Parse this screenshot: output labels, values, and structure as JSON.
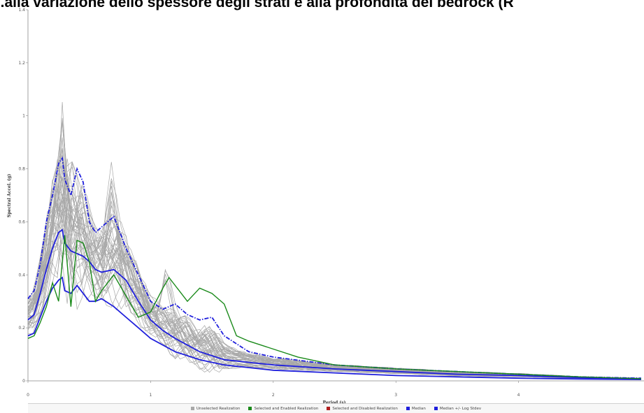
{
  "title": "...alla variazione dello spessore degli strati e alla profondità del bedrock (R",
  "chart_data": {
    "type": "line",
    "xlabel": "Period (s)",
    "ylabel": "Spectral Accel. (g)",
    "xlim": [
      0,
      5
    ],
    "ylim": [
      0,
      1.4
    ],
    "x_ticks": [
      "0",
      "1",
      "2",
      "3",
      "4"
    ],
    "y_ticks": [
      "0",
      "0.2",
      "0.4",
      "0.6",
      "0.8",
      "1",
      "1.2",
      "1.4"
    ],
    "grid": false,
    "legend_position": "bottom",
    "series": [
      {
        "name": "Median",
        "color": "#1f1fdc",
        "style": "solid",
        "x": [
          0,
          0.05,
          0.1,
          0.15,
          0.2,
          0.25,
          0.28,
          0.3,
          0.35,
          0.4,
          0.45,
          0.5,
          0.55,
          0.6,
          0.7,
          0.8,
          0.9,
          1.0,
          1.1,
          1.2,
          1.4,
          1.6,
          1.8,
          2.0,
          2.5,
          3.0,
          3.5,
          4.0,
          4.5,
          5.0
        ],
        "y": [
          0.23,
          0.25,
          0.33,
          0.42,
          0.5,
          0.56,
          0.57,
          0.52,
          0.49,
          0.48,
          0.47,
          0.45,
          0.42,
          0.41,
          0.42,
          0.38,
          0.3,
          0.23,
          0.19,
          0.16,
          0.11,
          0.08,
          0.07,
          0.06,
          0.045,
          0.035,
          0.025,
          0.02,
          0.012,
          0.008
        ]
      },
      {
        "name": "Median +/- Log Stdev (upper)",
        "color": "#1f1fdc",
        "style": "dashed",
        "x": [
          0,
          0.05,
          0.1,
          0.15,
          0.2,
          0.25,
          0.28,
          0.3,
          0.35,
          0.4,
          0.45,
          0.5,
          0.55,
          0.6,
          0.7,
          0.8,
          0.9,
          1.0,
          1.1,
          1.2,
          1.3,
          1.4,
          1.5,
          1.6,
          1.8,
          2.0,
          2.5,
          3.0,
          3.5,
          4.0,
          4.5,
          5.0
        ],
        "y": [
          0.31,
          0.34,
          0.44,
          0.6,
          0.7,
          0.82,
          0.84,
          0.76,
          0.7,
          0.8,
          0.75,
          0.6,
          0.56,
          0.58,
          0.62,
          0.5,
          0.4,
          0.3,
          0.27,
          0.29,
          0.25,
          0.23,
          0.24,
          0.17,
          0.11,
          0.09,
          0.06,
          0.045,
          0.035,
          0.025,
          0.015,
          0.01
        ]
      },
      {
        "name": "Median +/- Log Stdev (lower)",
        "color": "#1f1fdc",
        "style": "solid",
        "x": [
          0,
          0.05,
          0.1,
          0.15,
          0.2,
          0.25,
          0.28,
          0.3,
          0.35,
          0.4,
          0.45,
          0.5,
          0.55,
          0.6,
          0.7,
          0.8,
          0.9,
          1.0,
          1.2,
          1.4,
          1.6,
          1.8,
          2.0,
          2.5,
          3.0,
          3.5,
          4.0,
          4.5,
          5.0
        ],
        "y": [
          0.17,
          0.18,
          0.24,
          0.3,
          0.35,
          0.38,
          0.39,
          0.34,
          0.33,
          0.36,
          0.33,
          0.3,
          0.3,
          0.31,
          0.28,
          0.24,
          0.2,
          0.16,
          0.11,
          0.08,
          0.06,
          0.05,
          0.04,
          0.03,
          0.02,
          0.015,
          0.01,
          0.007,
          0.005
        ]
      },
      {
        "name": "Selected and Enabled Realization",
        "color": "#1a8a1a",
        "style": "solid",
        "x": [
          0,
          0.05,
          0.1,
          0.15,
          0.2,
          0.25,
          0.28,
          0.3,
          0.35,
          0.4,
          0.45,
          0.5,
          0.55,
          0.6,
          0.7,
          0.8,
          0.9,
          1.0,
          1.1,
          1.15,
          1.2,
          1.3,
          1.4,
          1.5,
          1.6,
          1.7,
          1.8,
          2.0,
          2.2,
          2.5,
          3.0,
          3.5,
          4.0,
          4.5,
          5.0
        ],
        "y": [
          0.16,
          0.17,
          0.22,
          0.28,
          0.37,
          0.3,
          0.45,
          0.55,
          0.28,
          0.53,
          0.52,
          0.45,
          0.3,
          0.34,
          0.4,
          0.32,
          0.24,
          0.26,
          0.35,
          0.39,
          0.36,
          0.3,
          0.35,
          0.33,
          0.29,
          0.17,
          0.15,
          0.12,
          0.09,
          0.06,
          0.045,
          0.035,
          0.025,
          0.015,
          0.008
        ]
      }
    ],
    "legend": [
      {
        "label": "Unselected Realization",
        "color": "#a8a8a8"
      },
      {
        "label": "Selected and Enabled Realization",
        "color": "#1a8a1a"
      },
      {
        "label": "Selected and Disabled Realization",
        "color": "#b01e1e"
      },
      {
        "label": "Median",
        "color": "#1f1fdc"
      },
      {
        "label": "Median +/- Log Stdev",
        "color": "#1f1fdc"
      }
    ]
  }
}
